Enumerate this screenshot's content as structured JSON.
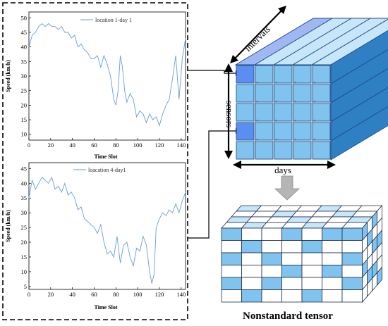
{
  "chart_data": [
    {
      "type": "line",
      "legend": "location 1-day 1",
      "legend_position": "top-center",
      "xlabel": "Time Slot",
      "ylabel": "Speed (km/h)",
      "xlim": [
        0,
        144
      ],
      "ylim": [
        8,
        52
      ],
      "xticks": [
        0,
        20,
        40,
        60,
        80,
        100,
        120,
        140
      ],
      "yticks": [
        10,
        15,
        20,
        25,
        30,
        35,
        40,
        45,
        50
      ],
      "color": "#6a9ae6",
      "x": [
        0,
        3,
        6,
        9,
        12,
        15,
        18,
        21,
        24,
        27,
        30,
        33,
        36,
        39,
        42,
        45,
        48,
        51,
        54,
        57,
        60,
        63,
        66,
        69,
        72,
        75,
        78,
        80,
        82,
        84,
        86,
        88,
        90,
        93,
        96,
        99,
        102,
        105,
        108,
        111,
        114,
        117,
        120,
        123,
        126,
        129,
        132,
        135,
        138,
        141,
        144
      ],
      "y": [
        40,
        44,
        45,
        47,
        48,
        47,
        48,
        47,
        47,
        46,
        47,
        45,
        45,
        43,
        44,
        40,
        41,
        39,
        38,
        36,
        36,
        37,
        33,
        37,
        34,
        30,
        22,
        20,
        25,
        37,
        33,
        25,
        21,
        24,
        22,
        16,
        18,
        17,
        14,
        17,
        15,
        16,
        13,
        17,
        20,
        22,
        29,
        37,
        22,
        36,
        43
      ]
    },
    {
      "type": "line",
      "legend": "loacation 4-day1",
      "legend_position": "top-center",
      "xlabel": "Time Slot",
      "ylabel": "Speed (km/h)",
      "xlim": [
        0,
        144
      ],
      "ylim": [
        4,
        47
      ],
      "xticks": [
        0,
        20,
        40,
        60,
        80,
        100,
        120,
        140
      ],
      "yticks": [
        5,
        10,
        15,
        20,
        25,
        30,
        35,
        40,
        45
      ],
      "color": "#6a9ae6",
      "x": [
        0,
        3,
        6,
        9,
        12,
        15,
        18,
        21,
        24,
        27,
        30,
        33,
        36,
        39,
        42,
        45,
        48,
        51,
        54,
        57,
        60,
        63,
        66,
        69,
        72,
        75,
        78,
        81,
        84,
        87,
        90,
        93,
        96,
        99,
        102,
        105,
        108,
        111,
        113,
        115,
        117,
        120,
        123,
        126,
        129,
        132,
        135,
        138,
        141,
        144
      ],
      "y": [
        35,
        41,
        38,
        40,
        42,
        41,
        40,
        42,
        38,
        39,
        37,
        40,
        36,
        37,
        35,
        31,
        32,
        28,
        27,
        26,
        25,
        23,
        26,
        20,
        16,
        17,
        15,
        22,
        13,
        19,
        20,
        15,
        12,
        18,
        17,
        22,
        19,
        10,
        6,
        9,
        25,
        28,
        30,
        29,
        31,
        30,
        33,
        30,
        34,
        37
      ]
    }
  ],
  "tensor": {
    "label_intervals": "intervals",
    "label_sensors": "sensors",
    "label_days": "days",
    "caption": "Nonstandard tensor"
  },
  "colors": {
    "cube_face": "#7fc3ee",
    "cube_top": "#c7e6fa",
    "cube_side": "#2e7fc4",
    "highlight": "#5a8ff0",
    "missing": "#ffffff",
    "arrow_gray": "#b5b5b5"
  }
}
